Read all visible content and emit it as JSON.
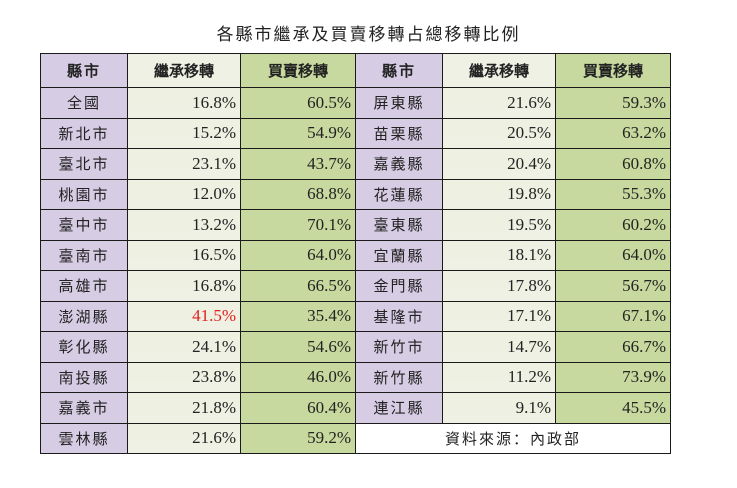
{
  "title": "各縣市繼承及買賣移轉占總移轉比例",
  "headers": {
    "region": "縣市",
    "inheritance": "繼承移轉",
    "purchase": "買賣移轉"
  },
  "left": [
    {
      "region": "全國",
      "inheritance": "16.8%",
      "purchase": "60.5%"
    },
    {
      "region": "新北市",
      "inheritance": "15.2%",
      "purchase": "54.9%"
    },
    {
      "region": "臺北市",
      "inheritance": "23.1%",
      "purchase": "43.7%"
    },
    {
      "region": "桃園市",
      "inheritance": "12.0%",
      "purchase": "68.8%"
    },
    {
      "region": "臺中市",
      "inheritance": "13.2%",
      "purchase": "70.1%"
    },
    {
      "region": "臺南市",
      "inheritance": "16.5%",
      "purchase": "64.0%"
    },
    {
      "region": "高雄市",
      "inheritance": "16.8%",
      "purchase": "66.5%"
    },
    {
      "region": "澎湖縣",
      "inheritance": "41.5%",
      "purchase": "35.4%",
      "highlight": true
    },
    {
      "region": "彰化縣",
      "inheritance": "24.1%",
      "purchase": "54.6%"
    },
    {
      "region": "南投縣",
      "inheritance": "23.8%",
      "purchase": "46.0%"
    },
    {
      "region": "嘉義市",
      "inheritance": "21.8%",
      "purchase": "60.4%"
    },
    {
      "region": "雲林縣",
      "inheritance": "21.6%",
      "purchase": "59.2%"
    }
  ],
  "right": [
    {
      "region": "屏東縣",
      "inheritance": "21.6%",
      "purchase": "59.3%"
    },
    {
      "region": "苗栗縣",
      "inheritance": "20.5%",
      "purchase": "63.2%"
    },
    {
      "region": "嘉義縣",
      "inheritance": "20.4%",
      "purchase": "60.8%"
    },
    {
      "region": "花蓮縣",
      "inheritance": "19.8%",
      "purchase": "55.3%"
    },
    {
      "region": "臺東縣",
      "inheritance": "19.5%",
      "purchase": "60.2%"
    },
    {
      "region": "宜蘭縣",
      "inheritance": "18.1%",
      "purchase": "64.0%"
    },
    {
      "region": "金門縣",
      "inheritance": "17.8%",
      "purchase": "56.7%"
    },
    {
      "region": "基隆市",
      "inheritance": "17.1%",
      "purchase": "67.1%"
    },
    {
      "region": "新竹市",
      "inheritance": "14.7%",
      "purchase": "66.7%"
    },
    {
      "region": "新竹縣",
      "inheritance": "11.2%",
      "purchase": "73.9%"
    },
    {
      "region": "連江縣",
      "inheritance": "9.1%",
      "purchase": "45.5%"
    }
  ],
  "source": "資料來源：內政部",
  "colors": {
    "region_bg": "#d6cce4",
    "inheritance_bg": "#eef1e3",
    "purchase_bg": "#c7d99e",
    "highlight": "#e02020"
  }
}
